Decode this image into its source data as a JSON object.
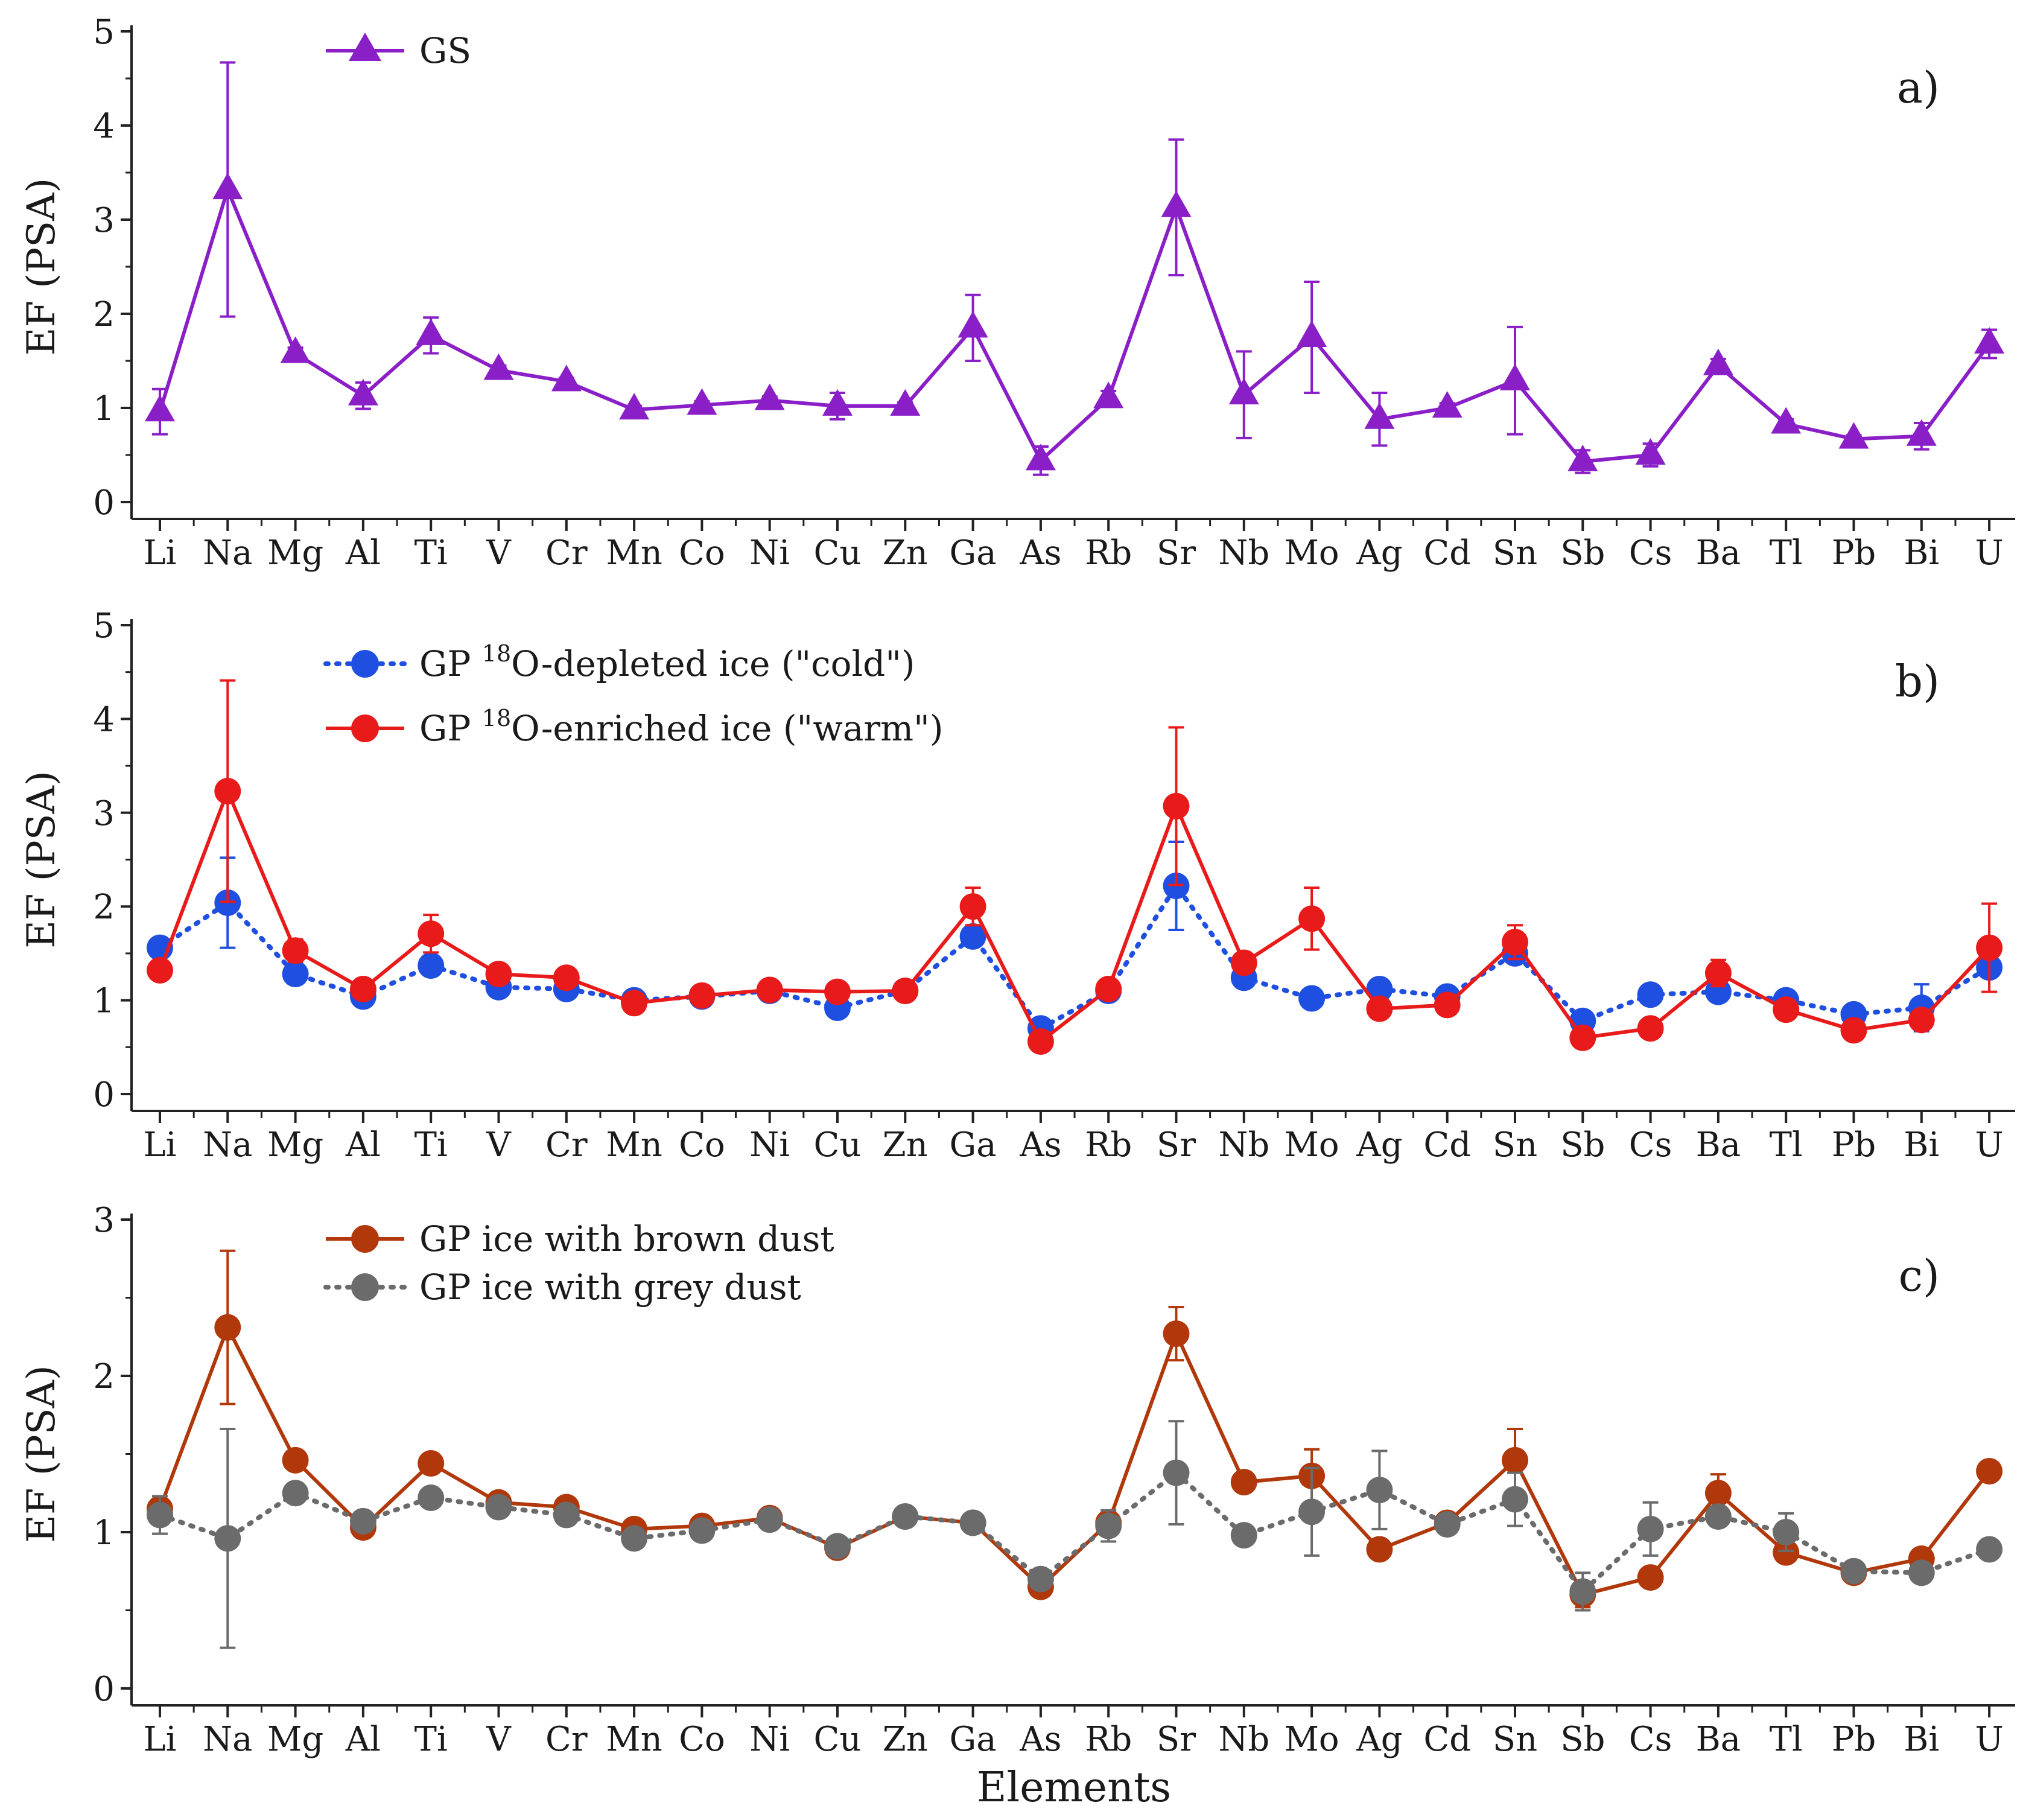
{
  "figure": {
    "xlabel_common": "Elements"
  },
  "chart_data": [
    {
      "type": "line",
      "panel_label": "a)",
      "ylabel": "EF (PSA)",
      "xlabel": "",
      "ylim": [
        0,
        5
      ],
      "yticks": [
        "0",
        "1",
        "2",
        "3",
        "4",
        "5"
      ],
      "categories": [
        "Li",
        "Na",
        "Mg",
        "Al",
        "Ti",
        "V",
        "Cr",
        "Mn",
        "Co",
        "Ni",
        "Cu",
        "Zn",
        "Ga",
        "As",
        "Rb",
        "Sr",
        "Nb",
        "Mo",
        "Ag",
        "Cd",
        "Sn",
        "Sb",
        "Cs",
        "Ba",
        "Tl",
        "Pb",
        "Bi",
        "U"
      ],
      "legend_position": "top-left",
      "series": [
        {
          "name": "GS",
          "legend_parts": {
            "main": "GS"
          },
          "color": "#8a1fc8",
          "marker": "triangle",
          "dash": "solid",
          "values": [
            0.96,
            3.32,
            1.58,
            1.13,
            1.77,
            1.4,
            1.28,
            0.98,
            1.03,
            1.08,
            1.02,
            1.02,
            1.85,
            0.44,
            1.1,
            3.13,
            1.14,
            1.75,
            0.88,
            1.0,
            1.29,
            0.43,
            0.5,
            1.45,
            0.83,
            0.67,
            0.7,
            1.68
          ],
          "errors": [
            0.24,
            1.35,
            0.06,
            0.14,
            0.19,
            0.05,
            0.04,
            0.04,
            0.04,
            0.04,
            0.14,
            0.04,
            0.35,
            0.15,
            0.08,
            0.72,
            0.46,
            0.59,
            0.28,
            0.05,
            0.57,
            0.12,
            0.12,
            0.07,
            0.05,
            0.04,
            0.14,
            0.15
          ]
        }
      ]
    },
    {
      "type": "line",
      "panel_label": "b)",
      "ylabel": "EF (PSA)",
      "xlabel": "",
      "ylim": [
        0,
        5
      ],
      "yticks": [
        "0",
        "1",
        "2",
        "3",
        "4",
        "5"
      ],
      "categories": [
        "Li",
        "Na",
        "Mg",
        "Al",
        "Ti",
        "V",
        "Cr",
        "Mn",
        "Co",
        "Ni",
        "Cu",
        "Zn",
        "Ga",
        "As",
        "Rb",
        "Sr",
        "Nb",
        "Mo",
        "Ag",
        "Cd",
        "Sn",
        "Sb",
        "Cs",
        "Ba",
        "Tl",
        "Pb",
        "Bi",
        "U"
      ],
      "legend_position": "top-left",
      "series": [
        {
          "name": "GP 18O-depleted ice (\"cold\")",
          "legend_parts": {
            "prefix": "GP ",
            "sup": "18",
            "main": "O-depleted ice (\"cold\")"
          },
          "color": "#1f4fe0",
          "marker": "circle",
          "dash": "dotted",
          "values": [
            1.56,
            2.04,
            1.28,
            1.04,
            1.37,
            1.14,
            1.12,
            1.0,
            1.04,
            1.1,
            0.92,
            1.1,
            1.68,
            0.7,
            1.1,
            2.22,
            1.24,
            1.02,
            1.12,
            1.04,
            1.5,
            0.78,
            1.06,
            1.09,
            1.0,
            0.85,
            0.92,
            1.35
          ],
          "errors": [
            0.1,
            0.48,
            0.05,
            0.04,
            0.04,
            0.04,
            0.04,
            0.04,
            0.04,
            0.04,
            0.04,
            0.04,
            0.05,
            0.04,
            0.04,
            0.47,
            0.04,
            0.07,
            0.1,
            0.04,
            0.07,
            0.04,
            0.04,
            0.04,
            0.04,
            0.04,
            0.25,
            0.06
          ]
        },
        {
          "name": "GP 18O-enriched ice (\"warm\")",
          "legend_parts": {
            "prefix": "GP ",
            "sup": "18",
            "main": "O-enriched ice (\"warm\")"
          },
          "color": "#e81a1a",
          "marker": "circle",
          "dash": "solid",
          "values": [
            1.32,
            3.23,
            1.53,
            1.12,
            1.71,
            1.28,
            1.24,
            0.97,
            1.05,
            1.11,
            1.09,
            1.1,
            2.0,
            0.56,
            1.12,
            3.07,
            1.4,
            1.87,
            0.91,
            0.95,
            1.62,
            0.6,
            0.7,
            1.29,
            0.9,
            0.68,
            0.79,
            1.56
          ],
          "errors": [
            0.1,
            1.18,
            0.12,
            0.04,
            0.2,
            0.05,
            0.04,
            0.04,
            0.04,
            0.04,
            0.1,
            0.04,
            0.2,
            0.04,
            0.06,
            0.84,
            0.1,
            0.33,
            0.1,
            0.1,
            0.18,
            0.04,
            0.04,
            0.14,
            0.04,
            0.04,
            0.08,
            0.47
          ]
        }
      ]
    },
    {
      "type": "line",
      "panel_label": "c)",
      "ylabel": "EF (PSA)",
      "xlabel": "Elements",
      "ylim": [
        0,
        3
      ],
      "yticks": [
        "0",
        "1",
        "2",
        "3"
      ],
      "categories": [
        "Li",
        "Na",
        "Mg",
        "Al",
        "Ti",
        "V",
        "Cr",
        "Mn",
        "Co",
        "Ni",
        "Cu",
        "Zn",
        "Ga",
        "As",
        "Rb",
        "Sr",
        "Nb",
        "Mo",
        "Ag",
        "Cd",
        "Sn",
        "Sb",
        "Cs",
        "Ba",
        "Tl",
        "Pb",
        "Bi",
        "U"
      ],
      "legend_position": "top-left",
      "series": [
        {
          "name": "GP ice with brown dust",
          "legend_parts": {
            "main": "GP ice with brown dust"
          },
          "color": "#b0380a",
          "marker": "circle",
          "dash": "solid",
          "values": [
            1.15,
            2.31,
            1.46,
            1.03,
            1.44,
            1.19,
            1.16,
            1.02,
            1.04,
            1.09,
            0.9,
            1.1,
            1.06,
            0.65,
            1.06,
            2.27,
            1.32,
            1.36,
            0.89,
            1.06,
            1.46,
            0.6,
            0.71,
            1.25,
            0.87,
            0.74,
            0.83,
            1.39
          ],
          "errors": [
            0.03,
            0.49,
            0.04,
            0.03,
            0.03,
            0.03,
            0.03,
            0.03,
            0.03,
            0.03,
            0.03,
            0.03,
            0.03,
            0.03,
            0.06,
            0.17,
            0.03,
            0.17,
            0.03,
            0.03,
            0.2,
            0.08,
            0.03,
            0.12,
            0.03,
            0.03,
            0.03,
            0.03
          ]
        },
        {
          "name": "GP ice with grey dust",
          "legend_parts": {
            "main": "GP ice with grey dust"
          },
          "color": "#6b6b6b",
          "marker": "circle",
          "dash": "dotted",
          "values": [
            1.11,
            0.96,
            1.25,
            1.07,
            1.22,
            1.16,
            1.11,
            0.96,
            1.01,
            1.08,
            0.91,
            1.1,
            1.06,
            0.7,
            1.04,
            1.38,
            0.98,
            1.13,
            1.27,
            1.05,
            1.21,
            0.62,
            1.02,
            1.1,
            1.0,
            0.75,
            0.74,
            0.89
          ],
          "errors": [
            0.12,
            0.7,
            0.03,
            0.03,
            0.03,
            0.03,
            0.03,
            0.03,
            0.03,
            0.03,
            0.05,
            0.03,
            0.03,
            0.03,
            0.1,
            0.33,
            0.03,
            0.28,
            0.25,
            0.03,
            0.17,
            0.12,
            0.17,
            0.03,
            0.12,
            0.03,
            0.03,
            0.03
          ]
        }
      ]
    }
  ]
}
